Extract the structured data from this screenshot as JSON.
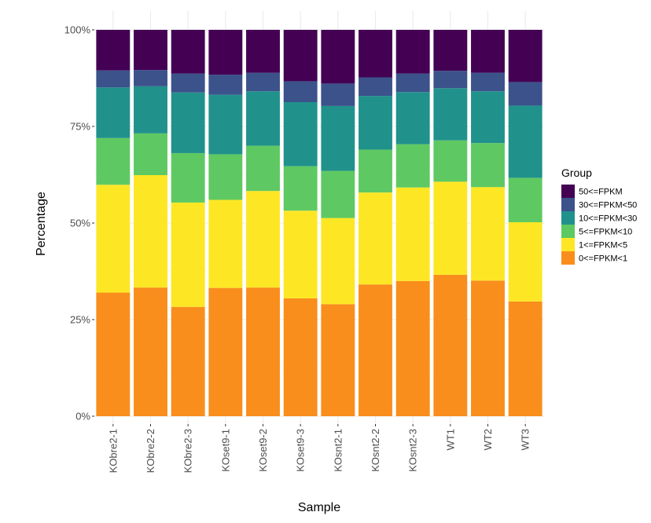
{
  "chart_data": {
    "type": "bar",
    "stacked": true,
    "xlabel": "Sample",
    "ylabel": "Percentage",
    "ylim": [
      0,
      100
    ],
    "y_ticks": [
      0,
      25,
      50,
      75,
      100
    ],
    "y_tick_labels": [
      "0%",
      "25%",
      "50%",
      "75%",
      "100%"
    ],
    "grid": true,
    "legend_position": "right",
    "legend_title": "Group",
    "categories": [
      "KObre2-1",
      "KObre2-2",
      "KObre2-3",
      "KOset9-1",
      "KOset9-2",
      "KOset9-3",
      "KOsnt2-1",
      "KOsnt2-2",
      "KOsnt2-3",
      "WT1",
      "WT2",
      "WT3"
    ],
    "series": [
      {
        "name": "0<=FPKM<1",
        "color": "#f98e1d",
        "values": [
          32.0,
          33.3,
          28.3,
          33.2,
          33.3,
          30.5,
          29.0,
          34.1,
          35.0,
          36.6,
          35.1,
          29.7
        ]
      },
      {
        "name": "1<=FPKM<5",
        "color": "#fde725",
        "values": [
          27.9,
          29.1,
          27.0,
          22.8,
          25.0,
          22.7,
          22.3,
          23.8,
          24.2,
          24.1,
          24.2,
          20.5
        ]
      },
      {
        "name": "5<=FPKM<10",
        "color": "#5ec962",
        "values": [
          12.1,
          10.8,
          12.8,
          11.8,
          11.7,
          11.5,
          12.2,
          11.1,
          11.2,
          10.7,
          11.4,
          11.5
        ]
      },
      {
        "name": "10<=FPKM<30",
        "color": "#21918c",
        "values": [
          13.1,
          12.2,
          15.7,
          15.4,
          14.1,
          16.6,
          16.8,
          13.9,
          13.5,
          13.5,
          13.4,
          18.7
        ]
      },
      {
        "name": "30<=FPKM<50",
        "color": "#3b528b",
        "values": [
          4.4,
          4.2,
          4.9,
          5.2,
          4.8,
          5.4,
          5.8,
          4.8,
          4.8,
          4.5,
          4.8,
          6.1
        ]
      },
      {
        "name": "50<=FPKM",
        "color": "#440154",
        "values": [
          10.5,
          10.4,
          11.3,
          11.6,
          11.1,
          13.3,
          13.9,
          12.3,
          11.3,
          10.6,
          11.1,
          13.5
        ]
      }
    ],
    "legend_order": [
      "50<=FPKM",
      "30<=FPKM<50",
      "10<=FPKM<30",
      "5<=FPKM<10",
      "1<=FPKM<5",
      "0<=FPKM<1"
    ]
  }
}
